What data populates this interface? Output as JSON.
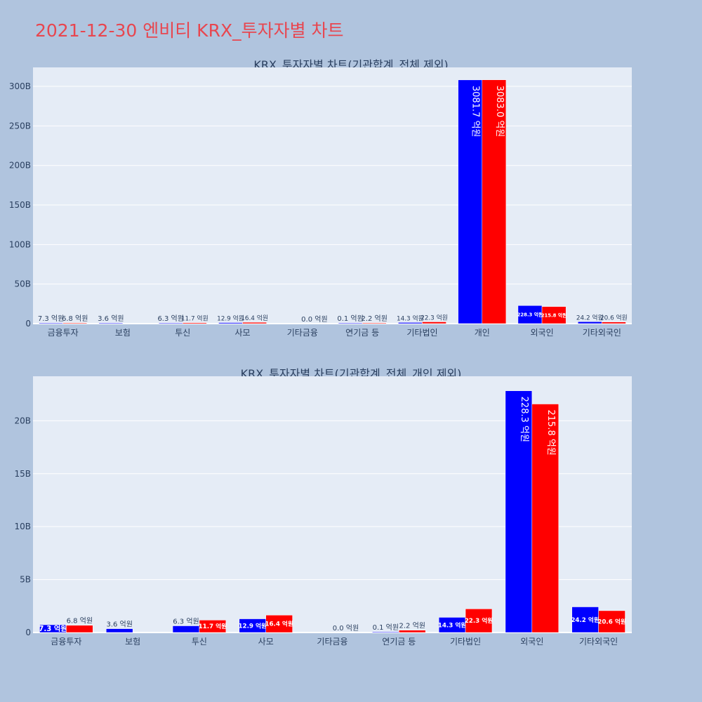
{
  "page_title": "2021-12-30 엔비티 KRX_투자자별 차트",
  "colors": {
    "background": "#b0c4de",
    "plot_bg": "#e5ecf6",
    "buy": "#0000ff",
    "sell": "#ff0000",
    "title": "#e8464f",
    "text": "#2a3f5f"
  },
  "chart_data": [
    {
      "type": "bar",
      "title": "KRX_투자자별 차트(기관합계_전체 제외)",
      "categories": [
        "금융투자",
        "보험",
        "투신",
        "사모",
        "기타금융",
        "연기금 등",
        "기타법인",
        "개인",
        "외국인",
        "기타외국인"
      ],
      "series": [
        {
          "color": "#0000ff",
          "values": [
            0.73,
            0.36,
            0.63,
            1.29,
            0.0,
            0.01,
            1.43,
            308.17,
            22.83,
            2.42
          ],
          "labels": [
            "7.3 억원",
            "3.6 억원",
            "6.3 억원",
            "12.9 억원",
            "",
            "0.1 억원",
            "14.3 억원",
            "3081.7 억원",
            "228.3 억원",
            "24.2 억원"
          ]
        },
        {
          "color": "#ff0000",
          "values": [
            0.68,
            0.0,
            1.17,
            1.64,
            0.0,
            0.22,
            2.23,
            308.3,
            21.58,
            2.06
          ],
          "labels": [
            "6.8 억원",
            "",
            "11.7 억원",
            "16.4 억원",
            "0.0 억원",
            "2.2 억원",
            "22.3 억원",
            "3083.0 억원",
            "215.8 억원",
            "20.6 억원"
          ]
        }
      ],
      "yticks": [
        "0",
        "50B",
        "100B",
        "150B",
        "200B",
        "250B",
        "300B"
      ],
      "ytick_values": [
        0,
        50,
        100,
        150,
        200,
        250,
        300
      ],
      "ylim": [
        0,
        324
      ],
      "grid": true
    },
    {
      "type": "bar",
      "title": "KRX_투자자별 차트(기관합계_전체_개인 제외)",
      "categories": [
        "금융투자",
        "보험",
        "투신",
        "사모",
        "기타금융",
        "연기금 등",
        "기타법인",
        "외국인",
        "기타외국인"
      ],
      "series": [
        {
          "color": "#0000ff",
          "values": [
            0.73,
            0.36,
            0.63,
            1.29,
            0.0,
            0.01,
            1.43,
            22.83,
            2.42
          ],
          "labels": [
            "7.3 억원",
            "3.6 억원",
            "6.3 억원",
            "12.9 억원",
            "",
            "0.1 억원",
            "14.3 억원",
            "228.3 억원",
            "24.2 억원"
          ]
        },
        {
          "color": "#ff0000",
          "values": [
            0.68,
            0.0,
            1.17,
            1.64,
            0.0,
            0.22,
            2.23,
            21.58,
            2.06
          ],
          "labels": [
            "6.8 억원",
            "",
            "11.7 억원",
            "16.4 억원",
            "0.0 억원",
            "2.2 억원",
            "22.3 억원",
            "215.8 억원",
            "20.6 억원"
          ]
        }
      ],
      "yticks": [
        "0",
        "5B",
        "10B",
        "15B",
        "20B"
      ],
      "ytick_values": [
        0,
        5,
        10,
        15,
        20
      ],
      "ylim": [
        0,
        24.2
      ],
      "grid": true
    }
  ]
}
